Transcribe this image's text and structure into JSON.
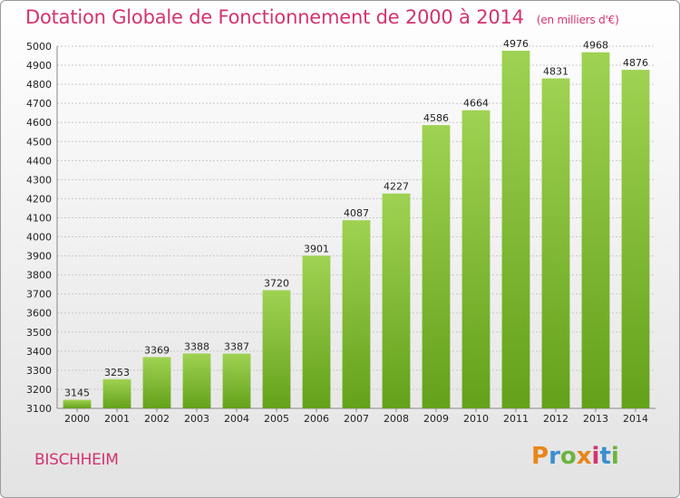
{
  "title": "Dotation Globale de Fonctionnement de 2000 à 2014",
  "subtitle": "(en milliers d'€)",
  "commune": "BISCHHEIM",
  "logo_text": "Proxiti",
  "logo_colors": [
    "#e8861a",
    "#3a8fd0",
    "#6db33f",
    "#e8861a",
    "#d3336f",
    "#3a8fd0",
    "#6db33f"
  ],
  "colors": {
    "title": "#d3336f",
    "bar_light": "#9fd252",
    "bar_dark": "#64a11a",
    "grid": "#c8c8c8"
  },
  "chart_data": {
    "type": "bar",
    "title": "Dotation Globale de Fonctionnement de 2000 à 2014",
    "subtitle": "(en milliers d'€)",
    "xlabel": "",
    "ylabel": "",
    "categories": [
      "2000",
      "2001",
      "2002",
      "2003",
      "2004",
      "2005",
      "2006",
      "2007",
      "2008",
      "2009",
      "2010",
      "2011",
      "2012",
      "2013",
      "2014"
    ],
    "values": [
      3145,
      3253,
      3369,
      3388,
      3387,
      3720,
      3901,
      4087,
      4227,
      4586,
      4664,
      4976,
      4831,
      4968,
      4876
    ],
    "ylim": [
      3100,
      5000
    ],
    "ytick_step": 100,
    "grid": true,
    "legend": "none"
  }
}
